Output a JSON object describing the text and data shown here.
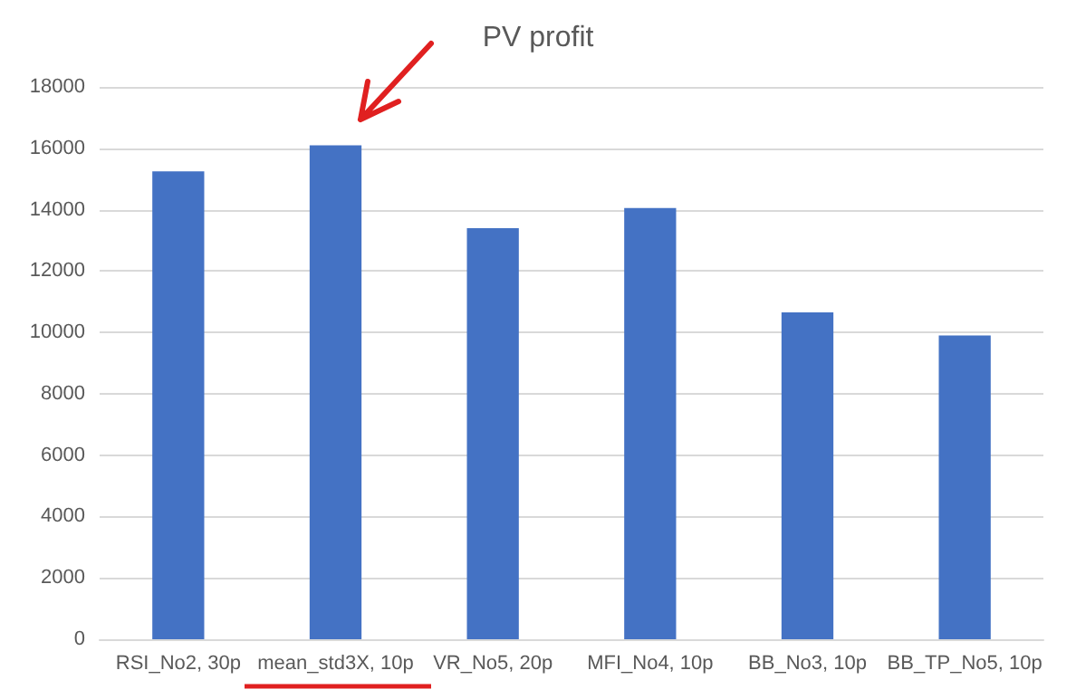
{
  "chart_data": {
    "type": "bar",
    "title": "PV profit",
    "categories": [
      "RSI_No2, 30p",
      "mean_std3X, 10p",
      "VR_No5, 20p",
      "MFI_No4, 10p",
      "BB_No3, 10p",
      "BB_TP_No5, 10p"
    ],
    "values": [
      15250,
      16100,
      13400,
      14050,
      10650,
      9900
    ],
    "color": "#4472c4",
    "ylim": [
      0,
      18000
    ],
    "yticks": [
      0,
      2000,
      4000,
      6000,
      8000,
      10000,
      12000,
      14000,
      16000,
      18000
    ],
    "grid": "y"
  }
}
